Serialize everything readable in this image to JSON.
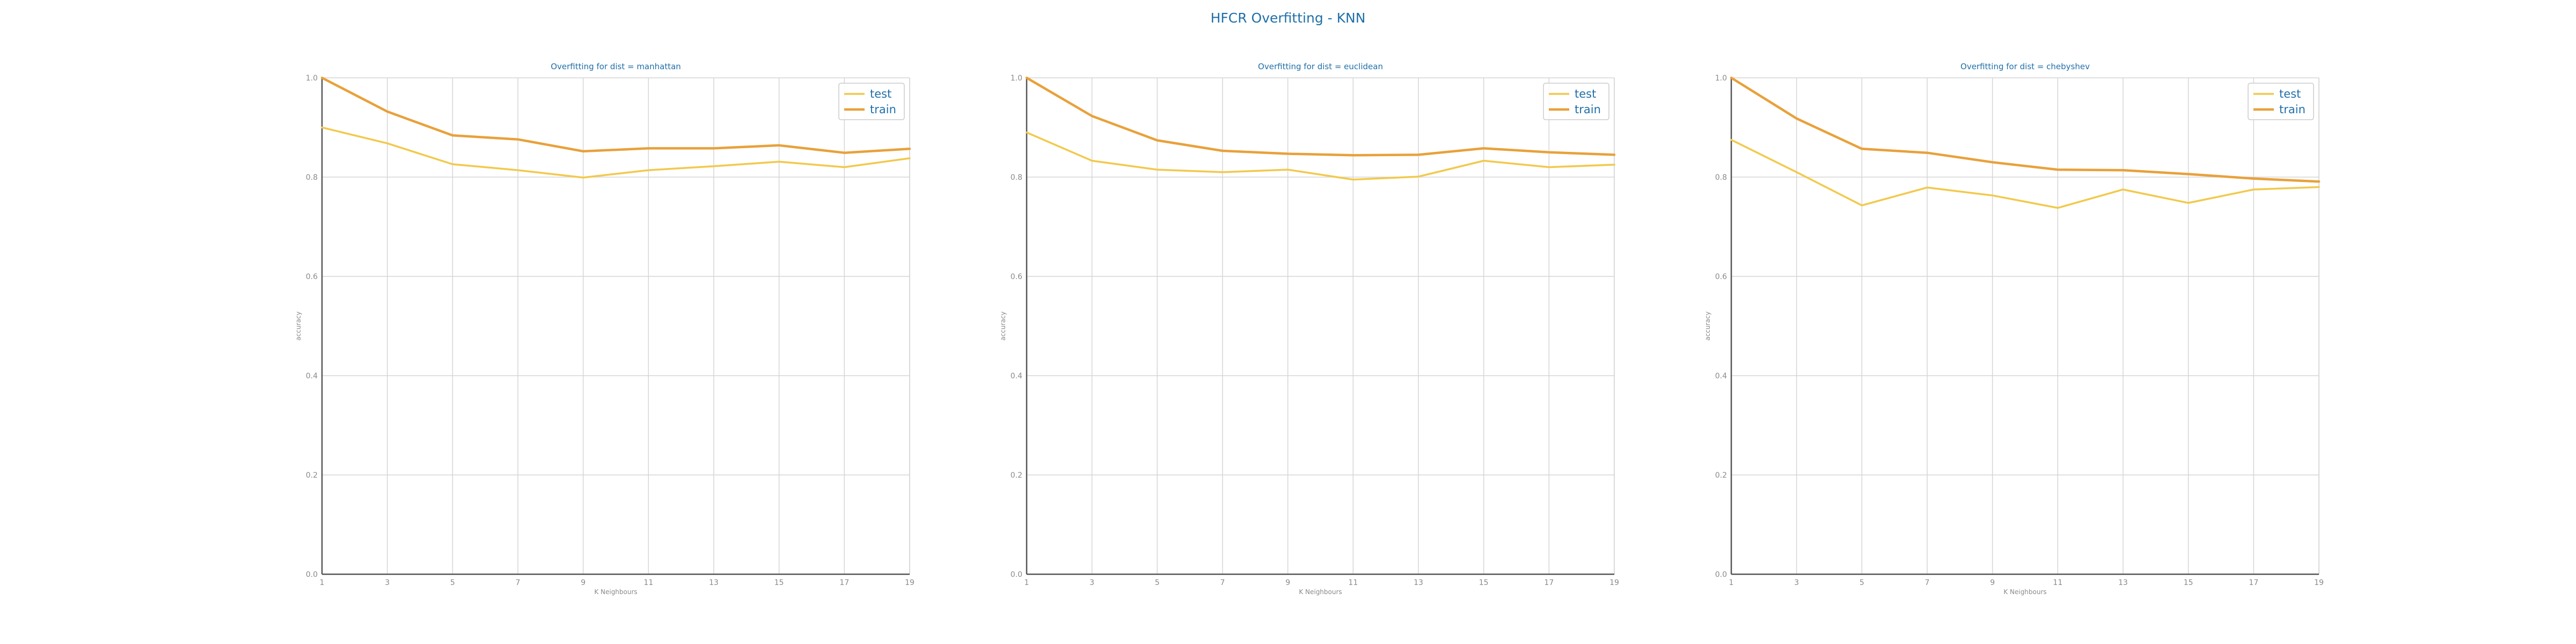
{
  "figure": {
    "suptitle": "HFCR Overfitting - KNN"
  },
  "colors": {
    "test": "#f2c94c",
    "train": "#e8a13a",
    "title": "#1f6fa8",
    "tick": "#8a8a8a",
    "grid": "#d5d5d5",
    "axis": "#555555"
  },
  "chart_data": [
    {
      "type": "line",
      "title": "Overfitting for dist = manhattan",
      "xlabel": "K Neighbours",
      "ylabel": "accuracy",
      "x": [
        1,
        3,
        5,
        7,
        9,
        11,
        13,
        15,
        17,
        19
      ],
      "xticks": [
        "1",
        "3",
        "5",
        "7",
        "9",
        "11",
        "13",
        "15",
        "17",
        "19"
      ],
      "yticks": [
        "0.0",
        "0.2",
        "0.4",
        "0.6",
        "0.8",
        "1.0"
      ],
      "xlim": [
        1,
        19
      ],
      "ylim": [
        0,
        1
      ],
      "grid": true,
      "legend": "top-right",
      "series": [
        {
          "name": "test",
          "values": [
            0.9,
            0.868,
            0.826,
            0.814,
            0.799,
            0.814,
            0.822,
            0.831,
            0.82,
            0.838
          ]
        },
        {
          "name": "train",
          "values": [
            1.0,
            0.932,
            0.884,
            0.876,
            0.852,
            0.858,
            0.858,
            0.864,
            0.849,
            0.857
          ]
        }
      ]
    },
    {
      "type": "line",
      "title": "Overfitting for dist = euclidean",
      "xlabel": "K Neighbours",
      "ylabel": "accuracy",
      "x": [
        1,
        3,
        5,
        7,
        9,
        11,
        13,
        15,
        17,
        19
      ],
      "xticks": [
        "1",
        "3",
        "5",
        "7",
        "9",
        "11",
        "13",
        "15",
        "17",
        "19"
      ],
      "yticks": [
        "0.0",
        "0.2",
        "0.4",
        "0.6",
        "0.8",
        "1.0"
      ],
      "xlim": [
        1,
        19
      ],
      "ylim": [
        0,
        1
      ],
      "grid": true,
      "legend": "top-right",
      "series": [
        {
          "name": "test",
          "values": [
            0.89,
            0.833,
            0.815,
            0.81,
            0.815,
            0.795,
            0.801,
            0.833,
            0.82,
            0.825
          ]
        },
        {
          "name": "train",
          "values": [
            1.0,
            0.923,
            0.874,
            0.853,
            0.847,
            0.844,
            0.845,
            0.858,
            0.85,
            0.845
          ]
        }
      ]
    },
    {
      "type": "line",
      "title": "Overfitting for dist = chebyshev",
      "xlabel": "K Neighbours",
      "ylabel": "accuracy",
      "x": [
        1,
        3,
        5,
        7,
        9,
        11,
        13,
        15,
        17,
        19
      ],
      "xticks": [
        "1",
        "3",
        "5",
        "7",
        "9",
        "11",
        "13",
        "15",
        "17",
        "19"
      ],
      "yticks": [
        "0.0",
        "0.2",
        "0.4",
        "0.6",
        "0.8",
        "1.0"
      ],
      "xlim": [
        1,
        19
      ],
      "ylim": [
        0,
        1
      ],
      "grid": true,
      "legend": "top-right",
      "series": [
        {
          "name": "test",
          "values": [
            0.875,
            0.81,
            0.743,
            0.779,
            0.763,
            0.738,
            0.775,
            0.748,
            0.775,
            0.78
          ]
        },
        {
          "name": "train",
          "values": [
            1.0,
            0.918,
            0.857,
            0.849,
            0.83,
            0.815,
            0.814,
            0.806,
            0.797,
            0.791
          ]
        }
      ]
    }
  ]
}
